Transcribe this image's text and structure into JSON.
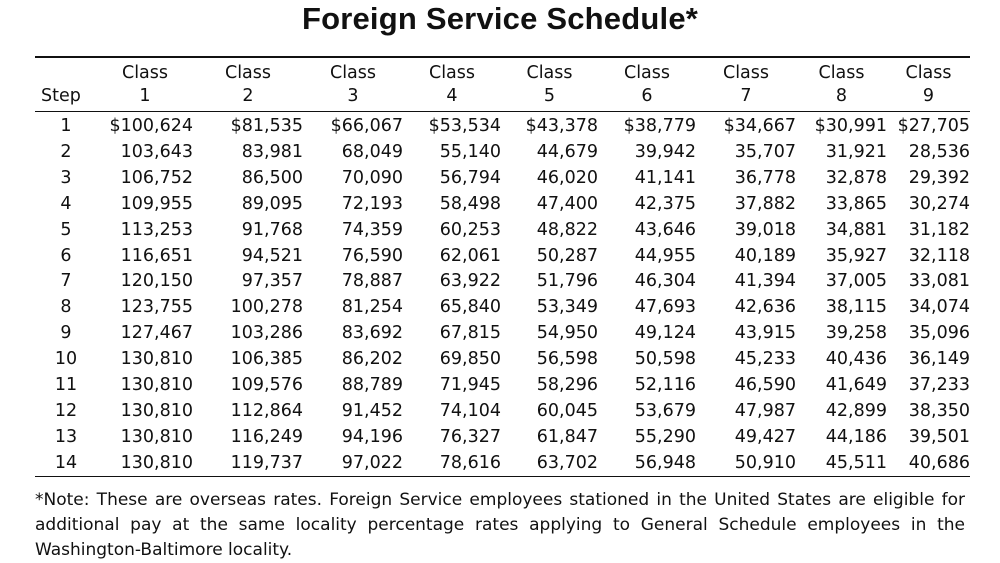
{
  "title": "Foreign Service Schedule*",
  "table": {
    "header_top": [
      "",
      "Class",
      "Class",
      "Class",
      "Class",
      "Class",
      "Class",
      "Class",
      "Class",
      "Class"
    ],
    "header_bottom": [
      "Step",
      "1",
      "2",
      "3",
      "4",
      "5",
      "6",
      "7",
      "8",
      "9"
    ],
    "rows": [
      [
        "1",
        "$100,624",
        "$81,535",
        "$66,067",
        "$53,534",
        "$43,378",
        "$38,779",
        "$34,667",
        "$30,991",
        "$27,705"
      ],
      [
        "2",
        "103,643",
        "83,981",
        "68,049",
        "55,140",
        "44,679",
        "39,942",
        "35,707",
        "31,921",
        "28,536"
      ],
      [
        "3",
        "106,752",
        "86,500",
        "70,090",
        "56,794",
        "46,020",
        "41,141",
        "36,778",
        "32,878",
        "29,392"
      ],
      [
        "4",
        "109,955",
        "89,095",
        "72,193",
        "58,498",
        "47,400",
        "42,375",
        "37,882",
        "33,865",
        "30,274"
      ],
      [
        "5",
        "113,253",
        "91,768",
        "74,359",
        "60,253",
        "48,822",
        "43,646",
        "39,018",
        "34,881",
        "31,182"
      ],
      [
        "6",
        "116,651",
        "94,521",
        "76,590",
        "62,061",
        "50,287",
        "44,955",
        "40,189",
        "35,927",
        "32,118"
      ],
      [
        "7",
        "120,150",
        "97,357",
        "78,887",
        "63,922",
        "51,796",
        "46,304",
        "41,394",
        "37,005",
        "33,081"
      ],
      [
        "8",
        "123,755",
        "100,278",
        "81,254",
        "65,840",
        "53,349",
        "47,693",
        "42,636",
        "38,115",
        "34,074"
      ],
      [
        "9",
        "127,467",
        "103,286",
        "83,692",
        "67,815",
        "54,950",
        "49,124",
        "43,915",
        "39,258",
        "35,096"
      ],
      [
        "10",
        "130,810",
        "106,385",
        "86,202",
        "69,850",
        "56,598",
        "50,598",
        "45,233",
        "40,436",
        "36,149"
      ],
      [
        "11",
        "130,810",
        "109,576",
        "88,789",
        "71,945",
        "58,296",
        "52,116",
        "46,590",
        "41,649",
        "37,233"
      ],
      [
        "12",
        "130,810",
        "112,864",
        "91,452",
        "74,104",
        "60,045",
        "53,679",
        "47,987",
        "42,899",
        "38,350"
      ],
      [
        "13",
        "130,810",
        "116,249",
        "94,196",
        "76,327",
        "61,847",
        "55,290",
        "49,427",
        "44,186",
        "39,501"
      ],
      [
        "14",
        "130,810",
        "119,737",
        "97,022",
        "78,616",
        "63,702",
        "56,948",
        "50,910",
        "45,511",
        "40,686"
      ]
    ]
  },
  "note": "*Note: These are overseas rates. Foreign Service employees stationed in the United States are eligible for additional pay at the same locality percentage rates applying to General Schedule employees in the Washington-Baltimore locality."
}
